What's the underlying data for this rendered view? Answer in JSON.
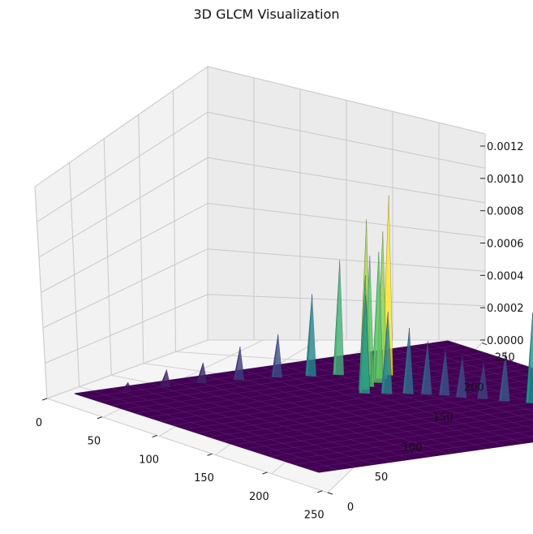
{
  "chart_data": {
    "type": "surface3d",
    "title": "3D GLCM Visualization",
    "xlabel": "",
    "ylabel": "",
    "zlabel": "",
    "xlim": [
      0,
      255
    ],
    "ylim": [
      0,
      255
    ],
    "zlim": [
      0,
      0.0012
    ],
    "x_ticks": [
      0,
      50,
      100,
      150,
      200,
      250
    ],
    "y_ticks": [
      0,
      50,
      100,
      150,
      200,
      250
    ],
    "z_ticks": [
      "0.0000",
      "0.0002",
      "0.0004",
      "0.0006",
      "0.0008",
      "0.0010",
      "0.0012"
    ],
    "colormap": "viridis",
    "grid": true,
    "note_peaks": [
      {
        "x": 10,
        "y": 30,
        "z": 5e-05
      },
      {
        "x": 12,
        "y": 55,
        "z": 0.0001
      },
      {
        "x": 15,
        "y": 78,
        "z": 0.00012
      },
      {
        "x": 20,
        "y": 100,
        "z": 0.0002
      },
      {
        "x": 26,
        "y": 122,
        "z": 0.00026
      },
      {
        "x": 34,
        "y": 140,
        "z": 0.0005
      },
      {
        "x": 40,
        "y": 155,
        "z": 0.0007
      },
      {
        "x": 48,
        "y": 168,
        "z": 0.00095
      },
      {
        "x": 56,
        "y": 178,
        "z": 0.0011
      },
      {
        "x": 62,
        "y": 170,
        "z": 0.0009
      },
      {
        "x": 70,
        "y": 162,
        "z": 0.0008
      },
      {
        "x": 76,
        "y": 152,
        "z": 0.0008
      },
      {
        "x": 82,
        "y": 145,
        "z": 0.0007
      },
      {
        "x": 90,
        "y": 140,
        "z": 0.0006
      },
      {
        "x": 98,
        "y": 150,
        "z": 0.0005
      },
      {
        "x": 105,
        "y": 160,
        "z": 0.0004
      },
      {
        "x": 112,
        "y": 168,
        "z": 0.00032
      },
      {
        "x": 120,
        "y": 175,
        "z": 0.00028
      },
      {
        "x": 130,
        "y": 180,
        "z": 0.00025
      },
      {
        "x": 140,
        "y": 188,
        "z": 0.00022
      },
      {
        "x": 152,
        "y": 195,
        "z": 0.0003
      },
      {
        "x": 165,
        "y": 205,
        "z": 0.00055
      },
      {
        "x": 178,
        "y": 212,
        "z": 0.0003
      },
      {
        "x": 190,
        "y": 222,
        "z": 0.00025
      },
      {
        "x": 200,
        "y": 228,
        "z": 0.0002
      },
      {
        "x": 210,
        "y": 238,
        "z": 0.0002
      },
      {
        "x": 222,
        "y": 242,
        "z": 0.00012
      },
      {
        "x": 236,
        "y": 250,
        "z": 0.0001
      },
      {
        "x": 248,
        "y": 253,
        "z": 4e-05
      }
    ]
  }
}
